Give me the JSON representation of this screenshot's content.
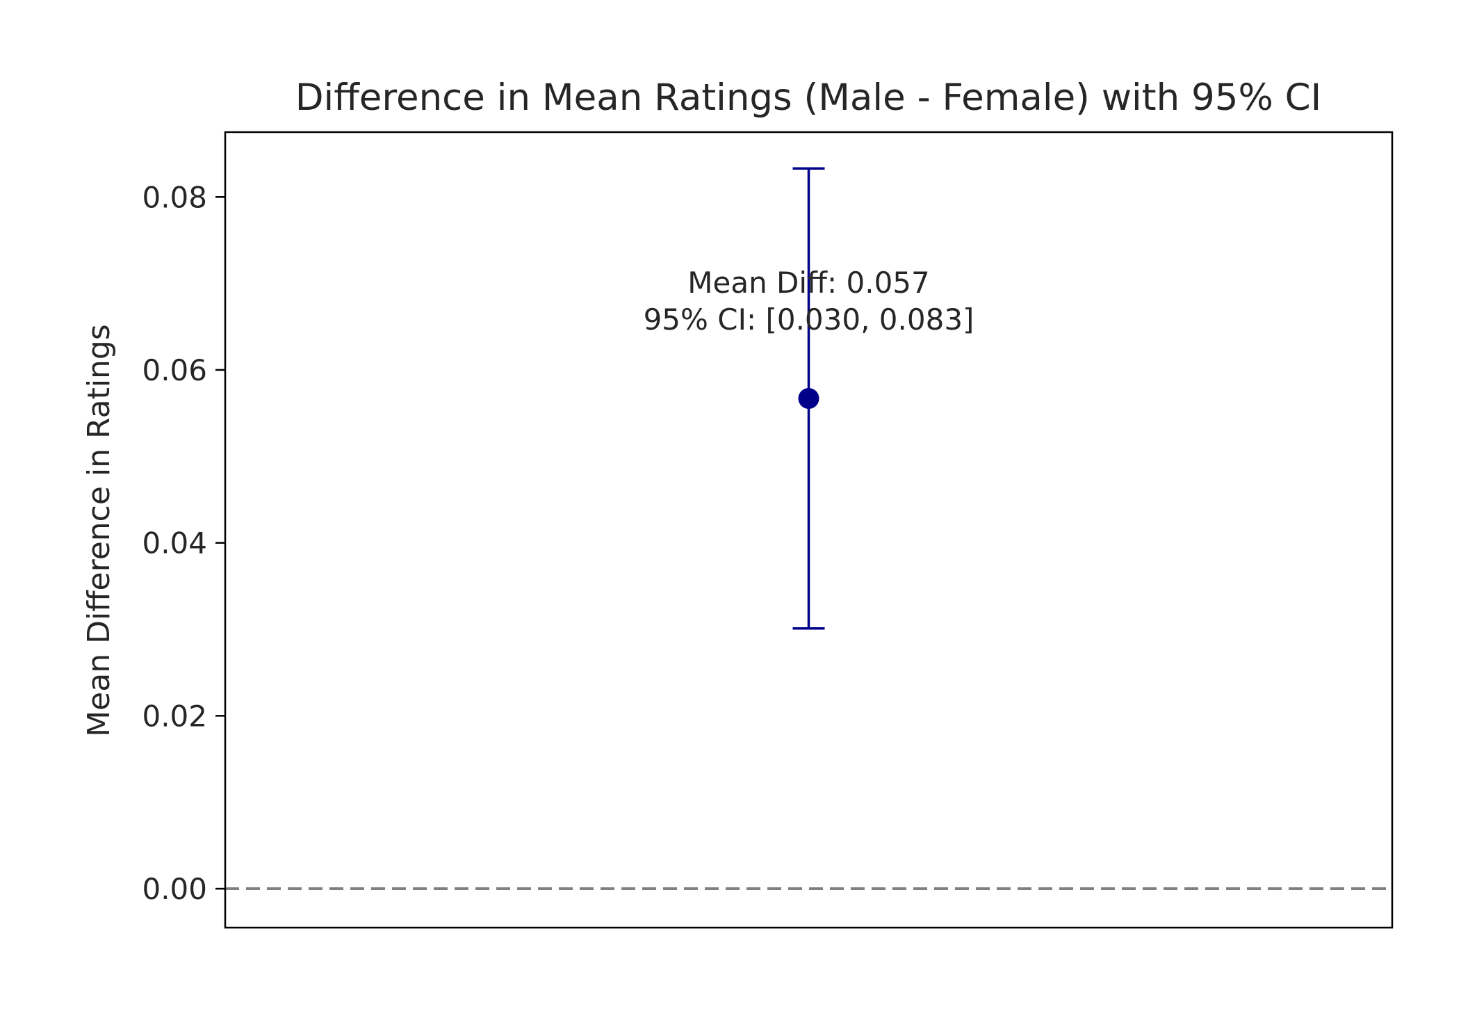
{
  "chart_data": {
    "type": "errorbar",
    "title": "Difference in Mean Ratings (Male - Female) with 95% CI",
    "xlabel": "",
    "ylabel": "Mean Difference in Ratings",
    "ylim": [
      -0.0045,
      0.0875
    ],
    "yticks": [
      {
        "value": 0.0,
        "label": "0.00"
      },
      {
        "value": 0.02,
        "label": "0.02"
      },
      {
        "value": 0.04,
        "label": "0.04"
      },
      {
        "value": 0.06,
        "label": "0.06"
      },
      {
        "value": 0.08,
        "label": "0.08"
      }
    ],
    "point": {
      "mean": 0.0567,
      "ci_low": 0.0301,
      "ci_high": 0.0833
    },
    "reference_line": {
      "y": 0.0,
      "style": "dashed",
      "color": "#808080"
    },
    "annotation": {
      "lines": [
        "Mean Diff: 0.057",
        "95% CI: [0.030, 0.083]"
      ],
      "y": 0.065
    },
    "colors": {
      "point": "#00008b",
      "errorbar": "#00008b"
    },
    "grid": false
  }
}
